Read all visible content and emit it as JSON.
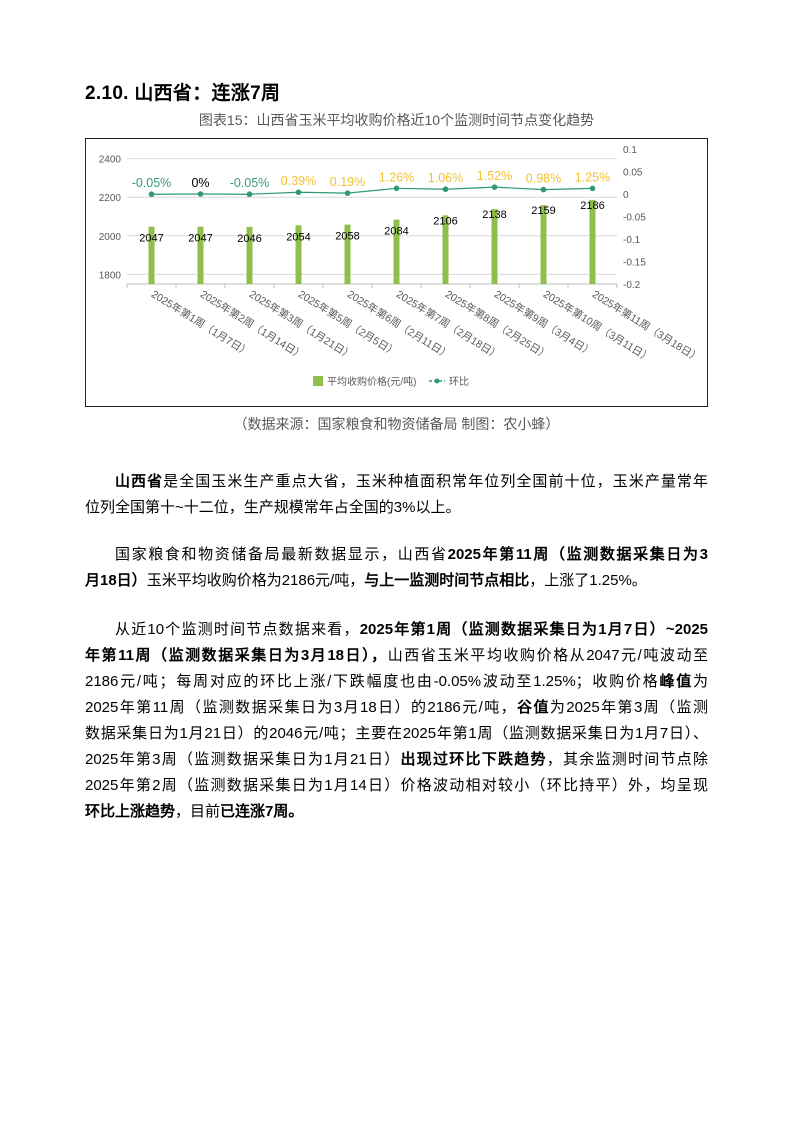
{
  "section_title": "2.10.  山西省：连涨7周",
  "figure_caption": "图表15：山西省玉米平均收购价格近10个监测时间节点变化趋势",
  "source_note": "（数据来源：国家粮食和物资储备局    制图：农小蜂）",
  "colors": {
    "bar": "#8fbf4a",
    "line": "#2e9a6e",
    "negative_label": "#3a9a72",
    "positive_label": "#f2c230",
    "zero_label": "#000000"
  },
  "chart_data": {
    "type": "bar+line",
    "categories": [
      "2025年第1周（1月7日）",
      "2025年第2周（1月14日）",
      "2025年第3周（1月21日）",
      "2025年第5周（2月5日）",
      "2025年第6周（2月11日）",
      "2025年第7周（2月18日）",
      "2025年第8周（2月25日）",
      "2025年第9周（3月4日）",
      "2025年第10周（3月11日）",
      "2025年第11周（3月18日）"
    ],
    "series": [
      {
        "name": "平均收购价格(元/吨)",
        "type": "bar",
        "axis": "left",
        "values": [
          2047,
          2047,
          2046,
          2054,
          2058,
          2084,
          2106,
          2138,
          2159,
          2186
        ]
      },
      {
        "name": "环比",
        "type": "line",
        "axis": "right",
        "values": [
          -0.0005,
          0,
          -0.0005,
          0.0039,
          0.0019,
          0.0126,
          0.0106,
          0.0152,
          0.0098,
          0.0125
        ],
        "labels": [
          "-0.05%",
          "0%",
          "-0.05%",
          "0.39%",
          "0.19%",
          "1.26%",
          "1.06%",
          "1.52%",
          "0.98%",
          "1.25%"
        ]
      }
    ],
    "left_axis": {
      "ylim": [
        1750,
        2450
      ],
      "ticks": [
        1800,
        2000,
        2200,
        2400
      ]
    },
    "right_axis": {
      "ylim": [
        -0.2,
        0.1
      ],
      "ticks": [
        "0.1",
        "0.05",
        "0",
        "-0.05",
        "-0.1",
        "-0.15",
        "-0.2"
      ]
    },
    "grid": true,
    "legend_position": "bottom"
  },
  "paragraphs": [
    {
      "lines": [
        [
          {
            "t": "山西省",
            "b": true
          },
          {
            "t": "是全国玉米生产重点大省，玉米种植面积常年位列全国前十位，玉米产量常年"
          }
        ],
        [
          {
            "t": "位列全国第十~十二位，生产规模常年占全国的3%以上。"
          }
        ]
      ]
    },
    {
      "lines": [
        [
          {
            "t": "国家粮食和物资储备局最新数据显示，山西省"
          },
          {
            "t": "2025年第11周（监测数据采集日为3",
            "b": true
          }
        ],
        [
          {
            "t": "月18日）",
            "b": true
          },
          {
            "t": "玉米平均收购价格为2186元/吨，"
          },
          {
            "t": "与上一监测时间节点相比",
            "b": true
          },
          {
            "t": "，上涨了1.25%。"
          }
        ]
      ]
    },
    {
      "lines": [
        [
          {
            "t": "从近10个监测时间节点数据来看，"
          },
          {
            "t": "2025年第1周（监测数据采集日为1月7日）~2025",
            "b": true
          }
        ],
        [
          {
            "t": "年第11周（监测数据采集日为3月18日），",
            "b": true
          },
          {
            "t": "山西省玉米平均收购价格从2047元/吨波动至"
          }
        ],
        [
          {
            "t": "2186元/吨；每周对应的环比上涨/下跌幅度也由-0.05%波动至1.25%；收购价格"
          },
          {
            "t": "峰值",
            "b": true
          },
          {
            "t": "为"
          }
        ],
        [
          {
            "t": "2025年第11周（监测数据采集日为3月18日）的2186元/吨，"
          },
          {
            "t": "谷值",
            "b": true
          },
          {
            "t": "为2025年第3周（监测"
          }
        ],
        [
          {
            "t": "数据采集日为1月21日）的2046元/吨；主要在2025年第1周（监测数据采集日为1月7日）、"
          }
        ],
        [
          {
            "t": "2025年第3周（监测数据采集日为1月21日）"
          },
          {
            "t": "出现过环比下跌趋势",
            "b": true
          },
          {
            "t": "，其余监测时间节点除"
          }
        ],
        [
          {
            "t": "2025年第2周（监测数据采集日为1月14日）价格波动相对较小（环比持平）外，均呈现"
          }
        ],
        [
          {
            "t": "环比上涨趋势",
            "b": true
          },
          {
            "t": "，目前"
          },
          {
            "t": "已连涨7周。",
            "b": true
          }
        ]
      ]
    }
  ]
}
